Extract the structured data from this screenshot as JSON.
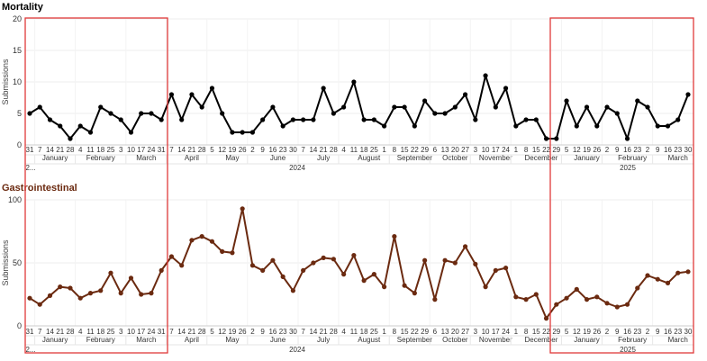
{
  "colors": {
    "series1": "#000000",
    "series2": "#6b2a10",
    "highlight": "#e03a3a",
    "grid": "#eeeeee"
  },
  "chart_data": [
    {
      "type": "line",
      "title": "Mortality",
      "ylabel": "Submissions",
      "ylim": [
        0,
        20
      ],
      "yticks": [
        0,
        5,
        10,
        15,
        20
      ],
      "grid": true,
      "day_labels": [
        "31",
        "7",
        "14",
        "21",
        "28",
        "4",
        "11",
        "18",
        "25",
        "3",
        "10",
        "17",
        "24",
        "31",
        "7",
        "14",
        "21",
        "28",
        "5",
        "12",
        "19",
        "26",
        "2",
        "9",
        "16",
        "23",
        "30",
        "7",
        "14",
        "21",
        "28",
        "4",
        "11",
        "18",
        "25",
        "1",
        "8",
        "15",
        "22",
        "29",
        "6",
        "13",
        "20",
        "27",
        "3",
        "10",
        "17",
        "24",
        "1",
        "8",
        "15",
        "22",
        "29",
        "5",
        "12",
        "19",
        "26",
        "2",
        "9",
        "16",
        "23",
        "2",
        "9",
        "16",
        "23",
        "30"
      ],
      "month_labels": [
        "January",
        "February",
        "March",
        "April",
        "May",
        "June",
        "July",
        "August",
        "September",
        "October",
        "November",
        "December",
        "January",
        "February",
        "March"
      ],
      "year_labels": [
        "2...",
        "2024",
        "2025"
      ],
      "values": [
        5,
        6,
        4,
        3,
        1,
        3,
        2,
        6,
        5,
        4,
        2,
        5,
        5,
        4,
        8,
        4,
        8,
        6,
        9,
        5,
        2,
        2,
        2,
        4,
        6,
        3,
        4,
        4,
        4,
        9,
        5,
        6,
        10,
        4,
        4,
        3,
        6,
        6,
        3,
        7,
        5,
        5,
        6,
        8,
        4,
        11,
        6,
        9,
        3,
        4,
        4,
        1,
        1,
        7,
        3,
        6,
        3,
        6,
        5,
        1,
        7,
        6,
        3,
        3,
        4,
        8
      ]
    },
    {
      "type": "line",
      "title": "Gastrointestinal",
      "ylabel": "Submissions",
      "ylim": [
        0,
        100
      ],
      "yticks": [
        0,
        50,
        100
      ],
      "grid": true,
      "day_labels": [
        "31",
        "7",
        "14",
        "21",
        "28",
        "4",
        "11",
        "18",
        "25",
        "3",
        "10",
        "17",
        "24",
        "31",
        "7",
        "14",
        "21",
        "28",
        "5",
        "12",
        "19",
        "26",
        "2",
        "9",
        "16",
        "23",
        "30",
        "7",
        "14",
        "21",
        "28",
        "4",
        "11",
        "18",
        "25",
        "1",
        "8",
        "15",
        "22",
        "29",
        "6",
        "13",
        "20",
        "27",
        "3",
        "10",
        "17",
        "24",
        "1",
        "8",
        "15",
        "22",
        "29",
        "5",
        "12",
        "19",
        "26",
        "2",
        "9",
        "16",
        "23",
        "2",
        "9",
        "16",
        "23",
        "30"
      ],
      "month_labels": [
        "January",
        "February",
        "March",
        "April",
        "May",
        "June",
        "July",
        "August",
        "September",
        "October",
        "November",
        "December",
        "January",
        "February",
        "March"
      ],
      "year_labels": [
        "2...",
        "2024",
        "2025"
      ],
      "values": [
        22,
        17,
        24,
        31,
        30,
        22,
        26,
        28,
        42,
        26,
        38,
        25,
        26,
        44,
        55,
        48,
        68,
        71,
        67,
        59,
        58,
        93,
        48,
        44,
        52,
        39,
        28,
        44,
        50,
        54,
        53,
        41,
        56,
        36,
        41,
        31,
        71,
        32,
        26,
        52,
        21,
        52,
        50,
        63,
        49,
        31,
        44,
        46,
        23,
        21,
        25,
        6,
        17,
        22,
        29,
        21,
        23,
        18,
        15,
        17,
        30,
        40,
        37,
        34,
        42,
        43
      ]
    }
  ]
}
